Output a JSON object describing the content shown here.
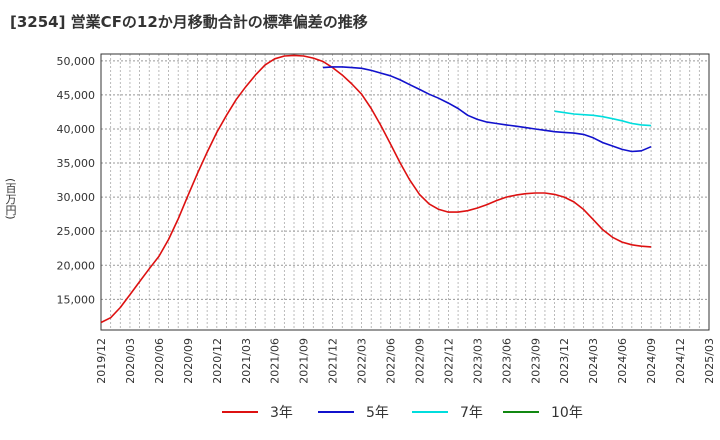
{
  "title": "[3254]  営業CFの12か月移動合計の標準偏差の推移",
  "chart_data": {
    "type": "line",
    "ylabel": "(百万円)",
    "xlabel": "",
    "x_ticks": [
      "2019/12",
      "2020/03",
      "2020/06",
      "2020/09",
      "2020/12",
      "2021/03",
      "2021/06",
      "2021/09",
      "2021/12",
      "2022/03",
      "2022/06",
      "2022/09",
      "2022/12",
      "2023/03",
      "2023/06",
      "2023/09",
      "2023/12",
      "2024/03",
      "2024/06",
      "2024/09",
      "2024/12",
      "2025/03"
    ],
    "y_ticks": [
      "15,000",
      "20,000",
      "25,000",
      "30,000",
      "35,000",
      "40,000",
      "45,000",
      "50,000"
    ],
    "y_tick_values": [
      15000,
      20000,
      25000,
      30000,
      35000,
      40000,
      45000,
      50000
    ],
    "ylim": [
      10500,
      51000
    ],
    "grid": true,
    "legend_position": "bottom",
    "series": [
      {
        "name": "3年",
        "color": "#dd1111",
        "points": [
          [
            "2019/12",
            11600
          ],
          [
            "2020/01",
            12300
          ],
          [
            "2020/02",
            13800
          ],
          [
            "2020/03",
            15700
          ],
          [
            "2020/04",
            17600
          ],
          [
            "2020/05",
            19500
          ],
          [
            "2020/06",
            21300
          ],
          [
            "2020/07",
            23800
          ],
          [
            "2020/08",
            26800
          ],
          [
            "2020/09",
            30200
          ],
          [
            "2020/10",
            33500
          ],
          [
            "2020/11",
            36600
          ],
          [
            "2020/12",
            39500
          ],
          [
            "2021/01",
            42000
          ],
          [
            "2021/02",
            44300
          ],
          [
            "2021/03",
            46200
          ],
          [
            "2021/04",
            47900
          ],
          [
            "2021/05",
            49400
          ],
          [
            "2021/06",
            50300
          ],
          [
            "2021/07",
            50700
          ],
          [
            "2021/08",
            50800
          ],
          [
            "2021/09",
            50700
          ],
          [
            "2021/10",
            50400
          ],
          [
            "2021/11",
            49900
          ],
          [
            "2021/12",
            49000
          ],
          [
            "2022/01",
            47900
          ],
          [
            "2022/02",
            46600
          ],
          [
            "2022/03",
            45100
          ],
          [
            "2022/04",
            43000
          ],
          [
            "2022/05",
            40500
          ],
          [
            "2022/06",
            37800
          ],
          [
            "2022/07",
            35000
          ],
          [
            "2022/08",
            32500
          ],
          [
            "2022/09",
            30400
          ],
          [
            "2022/10",
            29000
          ],
          [
            "2022/11",
            28200
          ],
          [
            "2022/12",
            27800
          ],
          [
            "2023/01",
            27800
          ],
          [
            "2023/02",
            28000
          ],
          [
            "2023/03",
            28400
          ],
          [
            "2023/04",
            28900
          ],
          [
            "2023/05",
            29500
          ],
          [
            "2023/06",
            30000
          ],
          [
            "2023/07",
            30300
          ],
          [
            "2023/08",
            30500
          ],
          [
            "2023/09",
            30600
          ],
          [
            "2023/10",
            30600
          ],
          [
            "2023/11",
            30400
          ],
          [
            "2023/12",
            30000
          ],
          [
            "2024/01",
            29300
          ],
          [
            "2024/02",
            28200
          ],
          [
            "2024/03",
            26700
          ],
          [
            "2024/04",
            25200
          ],
          [
            "2024/05",
            24100
          ],
          [
            "2024/06",
            23400
          ],
          [
            "2024/07",
            23000
          ],
          [
            "2024/08",
            22800
          ],
          [
            "2024/09",
            22700
          ]
        ]
      },
      {
        "name": "5年",
        "color": "#1111cc",
        "points": [
          [
            "2021/11",
            49000
          ],
          [
            "2021/12",
            49100
          ],
          [
            "2022/01",
            49100
          ],
          [
            "2022/02",
            49000
          ],
          [
            "2022/03",
            48900
          ],
          [
            "2022/04",
            48600
          ],
          [
            "2022/05",
            48200
          ],
          [
            "2022/06",
            47800
          ],
          [
            "2022/07",
            47200
          ],
          [
            "2022/08",
            46500
          ],
          [
            "2022/09",
            45800
          ],
          [
            "2022/10",
            45100
          ],
          [
            "2022/11",
            44500
          ],
          [
            "2022/12",
            43800
          ],
          [
            "2023/01",
            43000
          ],
          [
            "2023/02",
            42000
          ],
          [
            "2023/03",
            41400
          ],
          [
            "2023/04",
            41000
          ],
          [
            "2023/05",
            40800
          ],
          [
            "2023/06",
            40600
          ],
          [
            "2023/07",
            40400
          ],
          [
            "2023/08",
            40200
          ],
          [
            "2023/09",
            40000
          ],
          [
            "2023/10",
            39800
          ],
          [
            "2023/11",
            39600
          ],
          [
            "2023/12",
            39500
          ],
          [
            "2024/01",
            39400
          ],
          [
            "2024/02",
            39200
          ],
          [
            "2024/03",
            38700
          ],
          [
            "2024/04",
            38000
          ],
          [
            "2024/05",
            37500
          ],
          [
            "2024/06",
            37000
          ],
          [
            "2024/07",
            36700
          ],
          [
            "2024/08",
            36800
          ],
          [
            "2024/09",
            37400
          ]
        ]
      },
      {
        "name": "7年",
        "color": "#00dddd",
        "points": [
          [
            "2023/11",
            42600
          ],
          [
            "2023/12",
            42400
          ],
          [
            "2024/01",
            42200
          ],
          [
            "2024/02",
            42100
          ],
          [
            "2024/03",
            42000
          ],
          [
            "2024/04",
            41800
          ],
          [
            "2024/05",
            41500
          ],
          [
            "2024/06",
            41200
          ],
          [
            "2024/07",
            40800
          ],
          [
            "2024/08",
            40600
          ],
          [
            "2024/09",
            40500
          ]
        ]
      },
      {
        "name": "10年",
        "color": "#118811",
        "points": []
      }
    ]
  }
}
